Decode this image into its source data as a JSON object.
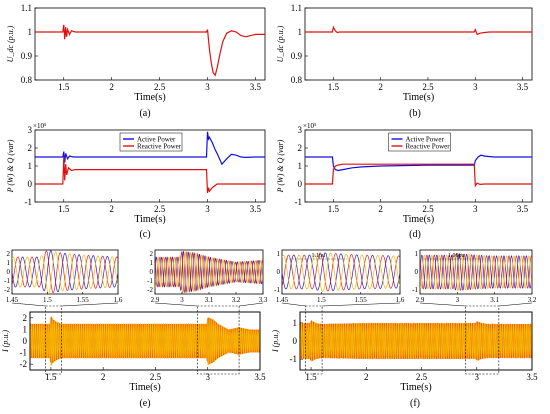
{
  "chart_data": [
    {
      "id": "a",
      "type": "line",
      "caption": "(a)",
      "xlabel": "Time(s)",
      "ylabel": "U_dc (p.u.)",
      "xlim": [
        1.2,
        3.6
      ],
      "ylim": [
        0.8,
        1.1
      ],
      "xticks": [
        1.5,
        2,
        2.5,
        3,
        3.5
      ],
      "yticks": [
        0.8,
        0.9,
        1,
        1.1
      ],
      "xtick_labels": [
        "1.5",
        "2",
        "2.5",
        "3",
        "3.5"
      ],
      "ytick_labels": [
        "0.8",
        "0.9",
        "1",
        "1.1"
      ],
      "series": [
        {
          "color": "#e01010",
          "x": [
            1.2,
            1.49,
            1.5,
            1.51,
            1.52,
            1.53,
            1.54,
            1.56,
            1.58,
            1.62,
            1.7,
            2.0,
            2.5,
            2.99,
            3.0,
            3.02,
            3.04,
            3.06,
            3.08,
            3.1,
            3.13,
            3.16,
            3.2,
            3.25,
            3.3,
            3.35,
            3.4,
            3.45,
            3.5,
            3.6
          ],
          "y": [
            1.0,
            1.0,
            1.03,
            0.97,
            1.02,
            0.98,
            1.01,
            0.99,
            1.005,
            1.0,
            1.0,
            1.0,
            1.0,
            1.0,
            1.01,
            0.93,
            0.87,
            0.83,
            0.82,
            0.85,
            0.91,
            0.96,
            0.995,
            1.005,
            1.0,
            0.985,
            0.98,
            0.985,
            0.99,
            0.99
          ]
        }
      ]
    },
    {
      "id": "b",
      "type": "line",
      "caption": "(b)",
      "xlabel": "Time(s)",
      "ylabel": "U_dc (p.u.)",
      "xlim": [
        1.2,
        3.6
      ],
      "ylim": [
        0.8,
        1.1
      ],
      "xticks": [
        1.5,
        2,
        2.5,
        3,
        3.5
      ],
      "yticks": [
        0.8,
        0.9,
        1,
        1.1
      ],
      "xtick_labels": [
        "1.5",
        "2",
        "2.5",
        "3",
        "3.5"
      ],
      "ytick_labels": [
        "0.8",
        "0.9",
        "1",
        "1.1"
      ],
      "series": [
        {
          "color": "#e01010",
          "x": [
            1.2,
            1.49,
            1.5,
            1.52,
            1.54,
            1.57,
            1.6,
            2.0,
            2.5,
            2.99,
            3.0,
            3.02,
            3.05,
            3.1,
            3.15,
            3.3,
            3.6
          ],
          "y": [
            1.0,
            1.0,
            1.02,
            1.005,
            0.998,
            1.0,
            1.0,
            1.0,
            1.0,
            1.0,
            1.01,
            0.99,
            0.995,
            0.998,
            1.0,
            1.0,
            1.0
          ]
        }
      ]
    },
    {
      "id": "c",
      "type": "line",
      "caption": "(c)",
      "xlabel": "Time(s)",
      "ylabel": "P (W) & Q (var)",
      "exponent": "×10⁵",
      "xlim": [
        1.2,
        3.6
      ],
      "ylim": [
        -1,
        3
      ],
      "xticks": [
        1.5,
        2,
        2.5,
        3,
        3.5
      ],
      "yticks": [
        -1,
        0,
        1,
        2,
        3
      ],
      "xtick_labels": [
        "1.5",
        "2",
        "2.5",
        "3",
        "3.5"
      ],
      "ytick_labels": [
        "-1",
        "0",
        "1",
        "2",
        "3"
      ],
      "legend_position": "top-center",
      "series": [
        {
          "name": "Active Power",
          "color": "#1010e0",
          "x": [
            1.2,
            1.49,
            1.5,
            1.51,
            1.52,
            1.54,
            1.56,
            1.6,
            1.7,
            2.0,
            2.5,
            2.99,
            3.0,
            3.01,
            3.02,
            3.05,
            3.08,
            3.1,
            3.15,
            3.2,
            3.25,
            3.3,
            3.35,
            3.4,
            3.5,
            3.6
          ],
          "y": [
            1.5,
            1.5,
            1.8,
            1.2,
            1.7,
            1.4,
            1.55,
            1.5,
            1.5,
            1.5,
            1.5,
            1.5,
            2.9,
            2.5,
            2.6,
            2.3,
            1.9,
            1.7,
            1.1,
            1.4,
            1.65,
            1.6,
            1.5,
            1.48,
            1.5,
            1.5
          ]
        },
        {
          "name": "Reactive Power",
          "color": "#e01010",
          "x": [
            1.2,
            1.49,
            1.5,
            1.51,
            1.52,
            1.53,
            1.55,
            1.58,
            1.62,
            1.7,
            2.0,
            2.5,
            2.99,
            3.0,
            3.01,
            3.02,
            3.05,
            3.1,
            3.2,
            3.3,
            3.6
          ],
          "y": [
            0,
            0,
            1.5,
            0.2,
            1.1,
            0.5,
            0.9,
            0.75,
            0.8,
            0.8,
            0.8,
            0.8,
            0.8,
            -0.5,
            -0.2,
            -0.4,
            -0.2,
            0,
            0,
            0,
            0
          ]
        }
      ]
    },
    {
      "id": "d",
      "type": "line",
      "caption": "(d)",
      "xlabel": "Time(s)",
      "ylabel": "P (W) & Q (var)",
      "exponent": "×10⁵",
      "xlim": [
        1.2,
        3.6
      ],
      "ylim": [
        -1,
        3
      ],
      "xticks": [
        1.5,
        2,
        2.5,
        3,
        3.5
      ],
      "yticks": [
        -1,
        0,
        1,
        2,
        3
      ],
      "xtick_labels": [
        "1.5",
        "2",
        "2.5",
        "3",
        "3.5"
      ],
      "ytick_labels": [
        "-1",
        "0",
        "1",
        "2",
        "3"
      ],
      "legend_position": "top-center",
      "series": [
        {
          "name": "Active Power",
          "color": "#1010e0",
          "x": [
            1.2,
            1.49,
            1.5,
            1.52,
            1.55,
            1.6,
            1.7,
            1.8,
            2.0,
            2.5,
            2.99,
            3.0,
            3.03,
            3.06,
            3.1,
            3.2,
            3.6
          ],
          "y": [
            1.5,
            1.5,
            1.0,
            0.8,
            0.75,
            0.8,
            0.9,
            0.95,
            1.0,
            1.05,
            1.05,
            1.3,
            1.5,
            1.6,
            1.55,
            1.5,
            1.5
          ]
        },
        {
          "name": "Reactive Power",
          "color": "#e01010",
          "x": [
            1.2,
            1.49,
            1.5,
            1.52,
            1.55,
            1.6,
            2.0,
            2.5,
            2.99,
            3.0,
            3.02,
            3.05,
            3.1,
            3.6
          ],
          "y": [
            0,
            0,
            0.8,
            1.0,
            1.05,
            1.1,
            1.1,
            1.1,
            1.1,
            -0.1,
            0.05,
            -0.02,
            0,
            0
          ]
        }
      ]
    },
    {
      "id": "e",
      "type": "line",
      "caption": "(e)",
      "xlabel": "Time(s)",
      "ylabel": "I (p.u.)",
      "xlim": [
        1.3,
        3.5
      ],
      "ylim": [
        -2.5,
        2.5
      ],
      "xticks": [
        1.5,
        2,
        2.5,
        3,
        3.5
      ],
      "yticks": [
        -2,
        -1,
        0,
        1,
        2
      ],
      "xtick_labels": [
        "1.5",
        "2",
        "2.5",
        "3",
        "3.5"
      ],
      "ytick_labels": [
        "-2",
        "-1",
        "0",
        "1",
        "2"
      ],
      "envelope": {
        "x": [
          1.3,
          1.49,
          1.5,
          1.52,
          1.55,
          1.6,
          2.0,
          2.99,
          3.0,
          3.05,
          3.1,
          3.2,
          3.3,
          3.4,
          3.5
        ],
        "amp": [
          1.5,
          1.5,
          2.2,
          1.9,
          1.7,
          1.5,
          1.5,
          1.5,
          2.1,
          1.9,
          1.5,
          1.0,
          1.2,
          1.0,
          1.0
        ]
      },
      "zoom_windows": [
        {
          "xlim": [
            1.45,
            1.6
          ],
          "ylim": [
            -2.2,
            2.2
          ],
          "xticks": [
            1.45,
            1.5,
            1.55,
            1.6
          ],
          "xtick_labels": [
            "1.45",
            "1.5",
            "1.55",
            "1.6"
          ],
          "ytick_labels": [
            "2",
            "1",
            "0",
            "-1",
            "-2"
          ]
        },
        {
          "xlim": [
            2.9,
            3.3
          ],
          "ylim": [
            -2.2,
            2.2
          ],
          "xticks": [
            2.9,
            3,
            3.1,
            3.2,
            3.3
          ],
          "xtick_labels": [
            "2.9",
            "3",
            "3.1",
            "3.2",
            "3.3"
          ],
          "ytick_labels": [
            "2",
            "1",
            "0",
            "-1",
            "-2"
          ]
        }
      ]
    },
    {
      "id": "f",
      "type": "line",
      "caption": "(f)",
      "xlabel": "Time(s)",
      "ylabel": "I (p.u.)",
      "xlim": [
        1.4,
        3.5
      ],
      "ylim": [
        -1.6,
        1.6
      ],
      "xticks": [
        1.5,
        2,
        2.5,
        3,
        3.5
      ],
      "yticks": [
        -1,
        0,
        1
      ],
      "xtick_labels": [
        "1.5",
        "2",
        "2.5",
        "3",
        "3.5"
      ],
      "ytick_labels": [
        "-1",
        "0",
        "1"
      ],
      "envelope": {
        "x": [
          1.4,
          1.49,
          1.5,
          1.55,
          1.6,
          2.0,
          2.99,
          3.0,
          3.05,
          3.1,
          3.2,
          3.5
        ],
        "amp": [
          1.0,
          1.0,
          1.15,
          1.0,
          0.95,
          1.0,
          1.0,
          1.1,
          1.0,
          0.95,
          0.95,
          0.95
        ]
      },
      "zoom_windows": [
        {
          "xlim": [
            1.45,
            1.6
          ],
          "ylim": [
            -1.3,
            1.3
          ],
          "xticks": [
            1.45,
            1.5,
            1.55,
            1.6
          ],
          "xtick_labels": [
            "1.45",
            "1.5",
            "1.55",
            "1.6"
          ],
          "ytick_labels": [
            "1",
            "0",
            "-1"
          ],
          "annotation": "1.1pu"
        },
        {
          "xlim": [
            2.9,
            3.2
          ],
          "ylim": [
            -1.3,
            1.3
          ],
          "xticks": [
            2.9,
            3,
            3.1,
            3.2
          ],
          "xtick_labels": [
            "2.9",
            "3",
            "3.1",
            "3.2"
          ],
          "ytick_labels": [
            "1",
            "0",
            "-1"
          ],
          "annotation": "1.06pu"
        }
      ]
    }
  ]
}
